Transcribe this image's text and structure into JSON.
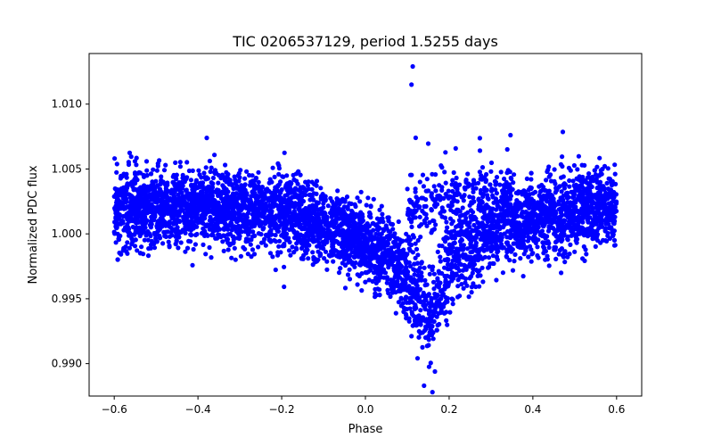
{
  "chart_data": {
    "type": "scatter",
    "title": "TIC 0206537129, period 1.5255 days",
    "xlabel": "Phase",
    "ylabel": "Normalized PDC flux",
    "xlim": [
      -0.66,
      0.66
    ],
    "ylim": [
      0.9875,
      1.0139
    ],
    "xticks": [
      -0.6,
      -0.4,
      -0.2,
      0.0,
      0.2,
      0.4,
      0.6
    ],
    "xtick_labels": [
      "−0.6",
      "−0.4",
      "−0.2",
      "0.0",
      "0.2",
      "0.4",
      "0.6"
    ],
    "yticks": [
      0.99,
      0.995,
      1.0,
      1.005,
      1.01
    ],
    "ytick_labels": [
      "0.990",
      "0.995",
      "1.000",
      "1.005",
      "1.010"
    ],
    "grid": false,
    "marker_color": "#0000ff",
    "series": [
      {
        "name": "",
        "description_points": [
          {
            "x": -0.6,
            "y_center": 1.0018,
            "spread": 0.0035
          },
          {
            "x": -0.4,
            "y_center": 1.0022,
            "spread": 0.0035
          },
          {
            "x": -0.2,
            "y_center": 1.0015,
            "spread": 0.0035
          },
          {
            "x": -0.05,
            "y_center": 1.0,
            "spread": 0.0035
          },
          {
            "x": 0.05,
            "y_center": 0.9985,
            "spread": 0.0035
          },
          {
            "x": 0.12,
            "y_center": 0.9955,
            "spread": 0.004
          },
          {
            "x": 0.16,
            "y_center": 0.9935,
            "spread": 0.004
          },
          {
            "x": 0.2,
            "y_center": 0.9975,
            "spread": 0.004
          },
          {
            "x": 0.3,
            "y_center": 1.0,
            "spread": 0.0035
          },
          {
            "x": 0.4,
            "y_center": 1.0012,
            "spread": 0.0035
          },
          {
            "x": 0.6,
            "y_center": 1.0022,
            "spread": 0.0035
          }
        ],
        "outliers": [
          {
            "x": 0.113,
            "y": 1.0129
          },
          {
            "x": 0.11,
            "y": 1.0115
          },
          {
            "x": 0.12,
            "y": 1.0074
          },
          {
            "x": 0.16,
            "y": 0.9878
          },
          {
            "x": 0.14,
            "y": 0.9883
          }
        ]
      }
    ]
  }
}
